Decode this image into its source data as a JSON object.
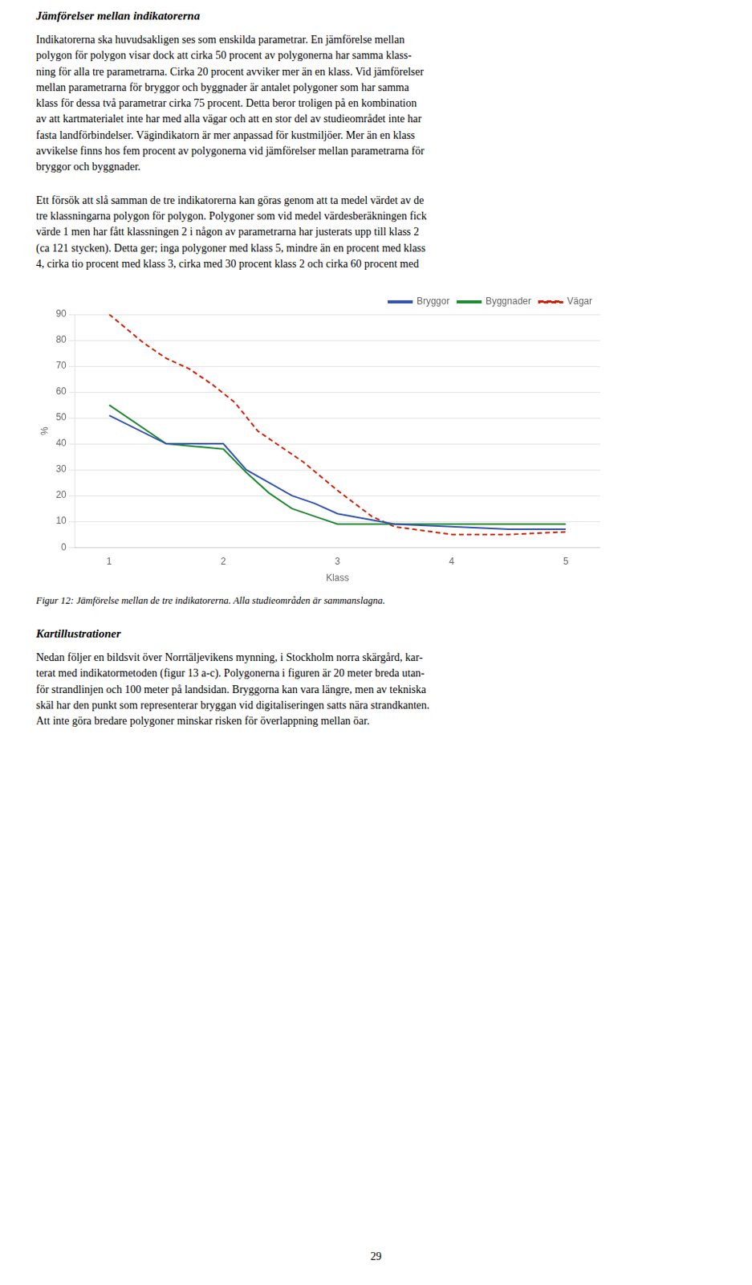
{
  "page": {
    "heading1": "Jämförelser mellan indikatorerna",
    "body1": [
      "Indikatorerna ska huvudsakligen ses som enskilda parametrar. En jämförelse mellan",
      "polygon för polygon visar dock att cirka 50 procent av polygonerna har samma klass-",
      "ning för alla tre parametrarna. Cirka 20 procent avviker mer än en klass. Vid jämförelser",
      "mellan parametrarna för bryggor och byggnader är antalet polygoner som har samma",
      "klass för dessa två parametrar cirka 75 procent. Detta beror troligen på en kombination",
      "av att kartmaterialet inte har med alla vägar och att en stor del av studieområdet inte har",
      "fasta landförbindelser. Vägindikatorn är mer anpassad för kustmiljöer. Mer än en klass",
      "avvikelse finns hos fem procent av polygonerna vid jämförelser mellan parametrarna för",
      "bryggor och byggnader."
    ],
    "body2": [
      "Ett försök att slå samman de tre indikatorerna kan göras genom att ta medel värdet av de",
      "tre klassningarna polygon för polygon. Polygoner som vid medel värdesberäkningen fick",
      "värde 1 men har fått klassningen 2 i någon av parametrarna har justerats upp till klass 2",
      "(ca 121 stycken). Detta ger; inga polygoner med klass 5, mindre än en procent med klass",
      "4, cirka tio procent med klass 3, cirka med 30 procent klass 2 och cirka 60 procent med"
    ],
    "caption": "Figur 12: Jämförelse mellan de tre indikatorerna. Alla studieområden är sammanslagna.",
    "heading2": "Kartillustrationer",
    "body3": [
      "Nedan följer en bildsvit över Norrtäljevikens mynning, i Stockholm norra skärgård, kar-",
      "terat med indikatormetoden (figur 13 a-c). Polygonerna i figuren är 20 meter breda utan-",
      "för strandlinjen och 100 meter på landsidan. Bryggorna kan vara längre, men av tekniska",
      "skäl har den punkt som representerar bryggan vid digitaliseringen satts nära strandkanten.",
      "Att inte göra bredare polygoner minskar risken för överlappning mellan öar."
    ],
    "page_number": "29"
  },
  "chart_data": {
    "type": "line",
    "xlabel": "Klass",
    "ylabel": "%",
    "xlim": [
      0.7,
      5.3
    ],
    "ylim": [
      0,
      90
    ],
    "xticks": [
      1,
      2,
      3,
      4,
      5
    ],
    "yticks": [
      0,
      10,
      20,
      30,
      40,
      50,
      60,
      70,
      80,
      90
    ],
    "grid": "y",
    "legend": "upper right",
    "series": [
      {
        "name": "Bryggor",
        "color": "#3355aa",
        "line_style": "solid",
        "x": [
          1,
          1.5,
          2.0,
          2.2,
          2.4,
          2.6,
          2.8,
          3.0,
          3.5,
          4.0,
          4.5,
          5.0
        ],
        "values": [
          51,
          40,
          40,
          30,
          25,
          20,
          17,
          13,
          9,
          8,
          7,
          7
        ]
      },
      {
        "name": "Byggnader",
        "color": "#228833",
        "line_style": "solid",
        "x": [
          1,
          1.5,
          2.0,
          2.2,
          2.4,
          2.6,
          2.8,
          3.0,
          3.5,
          4.0,
          4.5,
          5.0
        ],
        "values": [
          55,
          40,
          38,
          29,
          21,
          15,
          12,
          9,
          9,
          9,
          9,
          9
        ]
      },
      {
        "name": "Vägar",
        "color": "#cc2200",
        "line_style": "dashed",
        "x": [
          1,
          1.3,
          1.5,
          1.7,
          1.9,
          2.1,
          2.3,
          2.5,
          2.7,
          3.0,
          3.3,
          3.5,
          4.0,
          4.5,
          5.0
        ],
        "values": [
          90,
          79,
          73,
          69,
          63,
          56,
          45,
          39,
          33,
          22,
          12,
          8,
          5,
          5,
          6
        ]
      }
    ]
  }
}
